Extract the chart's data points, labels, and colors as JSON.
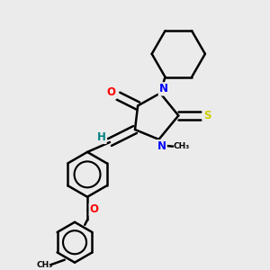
{
  "background_color": "#ebebeb",
  "line_color": "#000000",
  "bond_lw": 1.8,
  "atom_colors": {
    "N": "#0000ff",
    "O": "#ff0000",
    "S": "#cccc00",
    "H": "#008080",
    "C": "#000000"
  },
  "font_size": 8.5,
  "small_font": 6.5
}
